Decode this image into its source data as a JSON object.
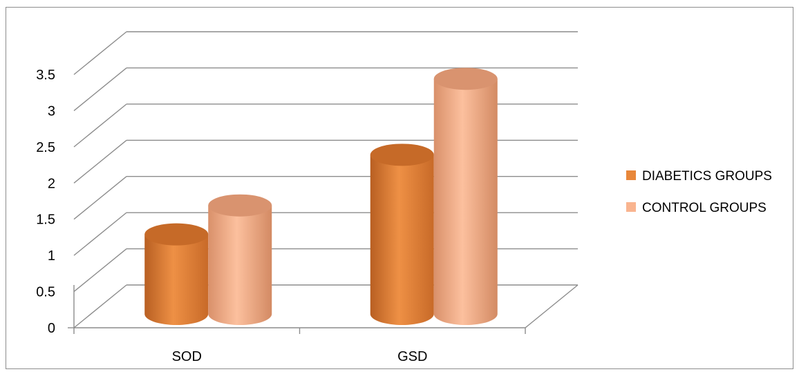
{
  "chart_data": {
    "type": "bar",
    "style": "3d-cylinder",
    "categories": [
      "SOD",
      "GSD"
    ],
    "series": [
      {
        "name": "DIABETICS GROUPS",
        "values": [
          1.1,
          2.2
        ],
        "color": "#e8873a"
      },
      {
        "name": "CONTROL GROUPS",
        "values": [
          1.5,
          3.25
        ],
        "color": "#f9b48f"
      }
    ],
    "ylim": [
      0,
      3.5
    ],
    "yticks": [
      "0",
      "0.5",
      "1",
      "1.5",
      "2",
      "2.5",
      "3",
      "3.5"
    ],
    "ytick_values": [
      0,
      0.5,
      1,
      1.5,
      2,
      2.5,
      3,
      3.5
    ],
    "grid": true,
    "legend_position": "right"
  }
}
